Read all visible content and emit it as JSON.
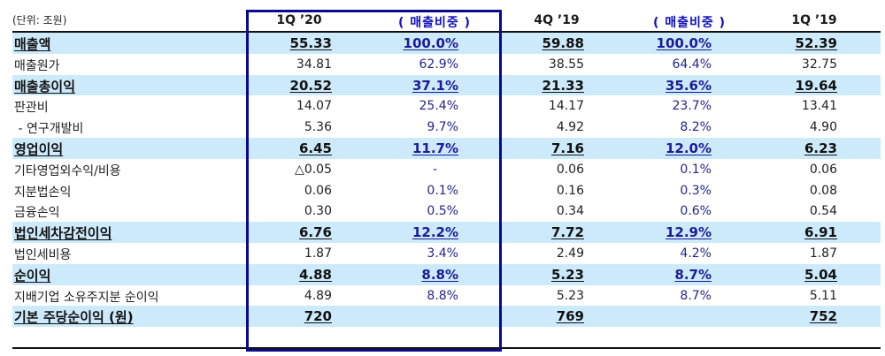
{
  "unit_label": "(단위: 조원)",
  "columns": [
    {
      "label": "1Q ’20",
      "type": "value"
    },
    {
      "label": "( 매출비중 )",
      "type": "ratio"
    },
    {
      "label": "4Q ’19",
      "type": "value"
    },
    {
      "label": "( 매출비중 )",
      "type": "ratio"
    },
    {
      "label": "1Q ’19",
      "type": "value"
    }
  ],
  "colors": {
    "highlight_row_bg": "#cdeafb",
    "highlight_box_border": "#0a0a8a",
    "ratio_text": "#24248c",
    "ratio_header_text": "#1010c0"
  },
  "rows": [
    {
      "label": "매출액",
      "highlight": true,
      "values": [
        "55.33",
        "100.0%",
        "59.88",
        "100.0%",
        "52.39"
      ]
    },
    {
      "label": "매출원가",
      "highlight": false,
      "values": [
        "34.81",
        "62.9%",
        "38.55",
        "64.4%",
        "32.75"
      ]
    },
    {
      "label": "매출총이익",
      "highlight": true,
      "values": [
        "20.52",
        "37.1%",
        "21.33",
        "35.6%",
        "19.64"
      ]
    },
    {
      "label": "판관비",
      "highlight": false,
      "values": [
        "14.07",
        "25.4%",
        "14.17",
        "23.7%",
        "13.41"
      ]
    },
    {
      "label": " - 연구개발비",
      "highlight": false,
      "values": [
        "5.36",
        "9.7%",
        "4.92",
        "8.2%",
        "4.90"
      ]
    },
    {
      "label": "영업이익",
      "highlight": true,
      "values": [
        "6.45",
        "11.7%",
        "7.16",
        "12.0%",
        "6.23"
      ]
    },
    {
      "label": "기타영업외수익/비용",
      "highlight": false,
      "values": [
        "△0.05",
        "-",
        "0.06",
        "0.1%",
        "0.06"
      ]
    },
    {
      "label": "지분법손익",
      "highlight": false,
      "values": [
        "0.06",
        "0.1%",
        "0.16",
        "0.3%",
        "0.08"
      ]
    },
    {
      "label": "금융손익",
      "highlight": false,
      "values": [
        "0.30",
        "0.5%",
        "0.34",
        "0.6%",
        "0.54"
      ]
    },
    {
      "label": "법인세차감전이익",
      "highlight": true,
      "values": [
        "6.76",
        "12.2%",
        "7.72",
        "12.9%",
        "6.91"
      ]
    },
    {
      "label": "법인세비용",
      "highlight": false,
      "values": [
        "1.87",
        "3.4%",
        "2.49",
        "4.2%",
        "1.87"
      ]
    },
    {
      "label": "순이익",
      "highlight": true,
      "values": [
        "4.88",
        "8.8%",
        "5.23",
        "8.7%",
        "5.04"
      ]
    },
    {
      "label": "지배기업 소유주지분 순이익",
      "highlight": false,
      "values": [
        "4.89",
        "8.8%",
        "5.23",
        "8.7%",
        "5.11"
      ]
    },
    {
      "label": "기본 주당순이익 (원)",
      "highlight": true,
      "values": [
        "720",
        "",
        "769",
        "",
        "752"
      ]
    }
  ]
}
